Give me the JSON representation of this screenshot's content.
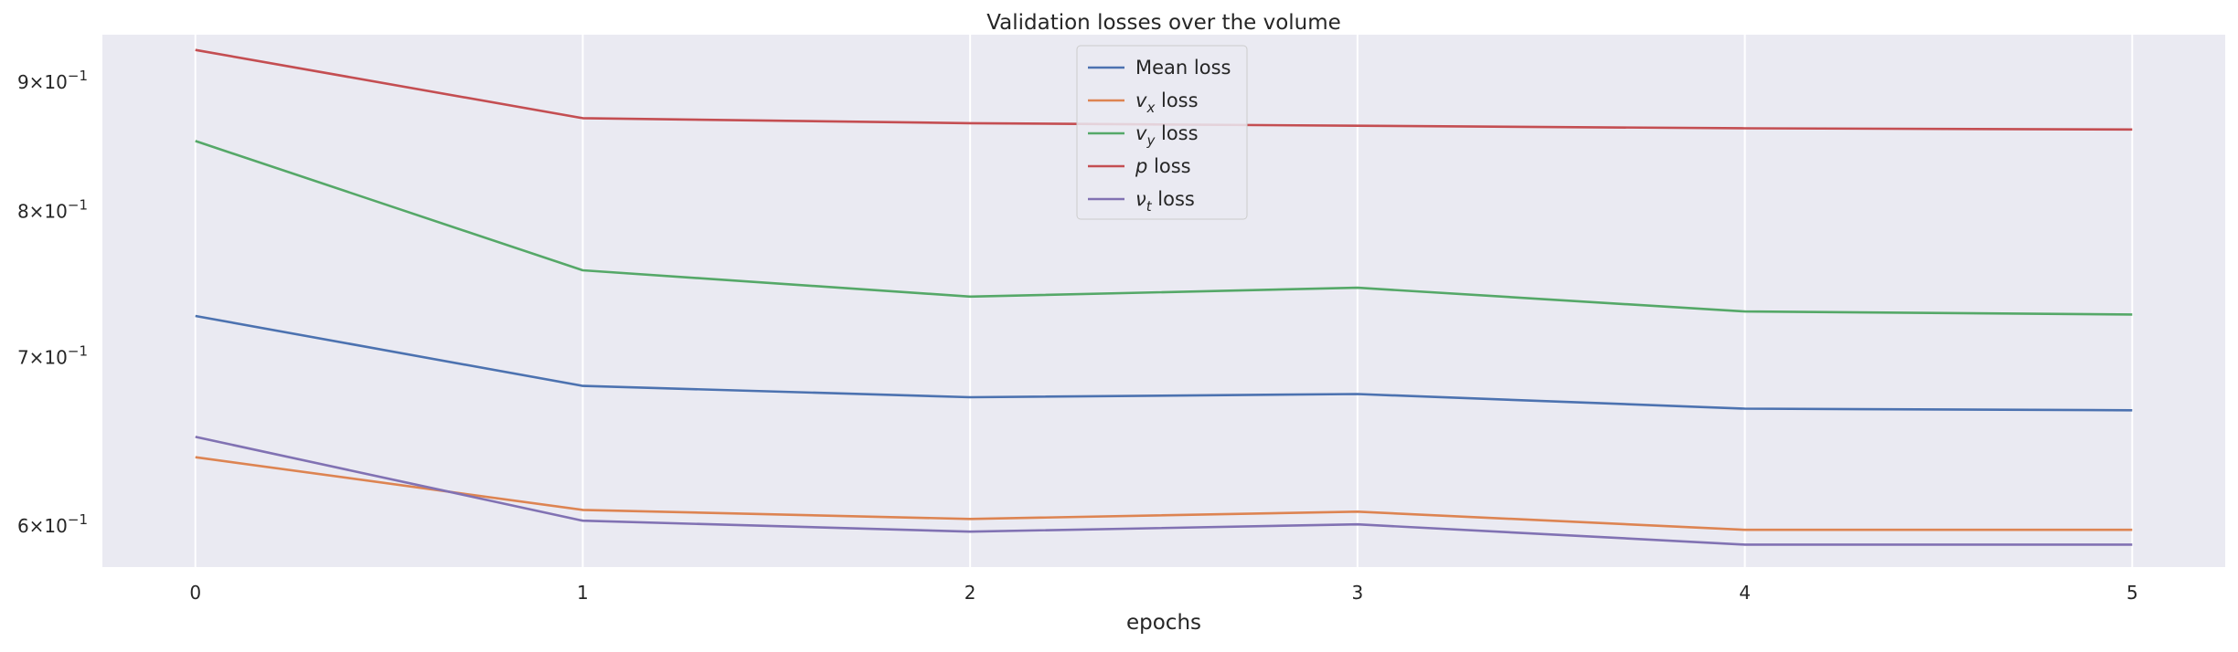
{
  "chart_data": {
    "type": "line",
    "title": "Validation losses over the volume",
    "xlabel": "epochs",
    "ylabel": "",
    "yscale": "log",
    "x": [
      0,
      1,
      2,
      3,
      4,
      5
    ],
    "xlim": [
      -0.24,
      5.24
    ],
    "ylim": [
      0.578,
      0.94
    ],
    "grid": true,
    "legend_position": "top-center",
    "xticks": [
      "0",
      "1",
      "2",
      "3",
      "4",
      "5"
    ],
    "yticks": [
      {
        "value": 0.6,
        "base": "6",
        "exp": "−1"
      },
      {
        "value": 0.7,
        "base": "7",
        "exp": "−1"
      },
      {
        "value": 0.8,
        "base": "8",
        "exp": "−1"
      },
      {
        "value": 0.9,
        "base": "9",
        "exp": "−1"
      }
    ],
    "series": [
      {
        "name": "Mean loss",
        "label_main": "Mean loss",
        "label_sub": "",
        "label_tail": "",
        "color": "#4c72b0",
        "values": [
          0.727,
          0.682,
          0.675,
          0.677,
          0.668,
          0.667
        ]
      },
      {
        "name": "vx loss",
        "label_main": "v",
        "label_sub": "x",
        "label_tail": " loss",
        "color": "#dd8452",
        "values": [
          0.639,
          0.609,
          0.604,
          0.608,
          0.598,
          0.598
        ]
      },
      {
        "name": "vy loss",
        "label_main": "v",
        "label_sub": "y",
        "label_tail": " loss",
        "color": "#55a868",
        "values": [
          0.853,
          0.758,
          0.74,
          0.746,
          0.73,
          0.728
        ]
      },
      {
        "name": "p loss",
        "label_main": "p",
        "label_sub": "",
        "label_tail": " loss",
        "color": "#c44e52",
        "values": [
          0.927,
          0.871,
          0.867,
          0.865,
          0.863,
          0.862
        ]
      },
      {
        "name": "νt loss",
        "label_main": "ν",
        "label_sub": "t",
        "label_tail": " loss",
        "color": "#8172b3",
        "values": [
          0.651,
          0.603,
          0.597,
          0.601,
          0.59,
          0.59
        ]
      }
    ]
  }
}
